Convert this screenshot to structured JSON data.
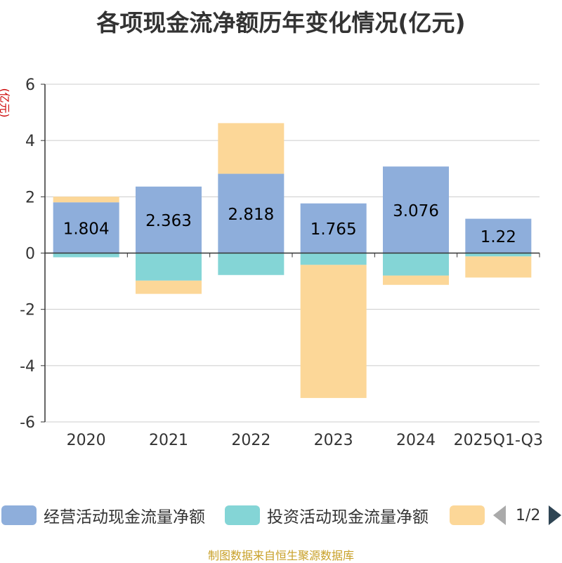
{
  "colors": {
    "operating": "#8eaedb",
    "investing": "#84d5d6",
    "financing": "#fcd798",
    "axis": "#333333",
    "grid": "#cccccc",
    "unit": "#cc0000",
    "footer": "#c8a028",
    "pager_inactive": "#aaaaaa",
    "pager_active": "#2f4554"
  },
  "chart_data": {
    "type": "bar",
    "stacked": true,
    "title": "各项现金流净额历年变化情况(亿元)",
    "ylabel": "(亿元)",
    "categories": [
      "2020",
      "2021",
      "2022",
      "2023",
      "2024",
      "2025Q1-Q3"
    ],
    "ylim": [
      -6,
      6
    ],
    "yticks": [
      6,
      4,
      2,
      0,
      -2,
      -4,
      -6
    ],
    "grid": true,
    "legend_position": "bottom",
    "series": [
      {
        "name": "经营活动现金流量净额",
        "values": [
          1.804,
          2.363,
          2.818,
          1.765,
          3.076,
          1.22
        ],
        "labels": [
          "1.804",
          "2.363",
          "2.818",
          "1.765",
          "3.076",
          "1.22"
        ],
        "show_labels": true
      },
      {
        "name": "投资活动现金流量净额",
        "values": [
          -0.15,
          -0.98,
          -0.78,
          -0.42,
          -0.8,
          -0.12
        ],
        "show_labels": false
      },
      {
        "name": "",
        "values": [
          0.2,
          -0.47,
          1.8,
          -4.73,
          -0.33,
          -0.75
        ],
        "show_labels": false
      }
    ]
  },
  "legend": {
    "items": [
      {
        "label": "经营活动现金流量净额"
      },
      {
        "label": "投资活动现金流量净额"
      },
      {
        "label": ""
      }
    ],
    "pager": "1/2"
  },
  "footer": "制图数据来自恒生聚源数据库"
}
